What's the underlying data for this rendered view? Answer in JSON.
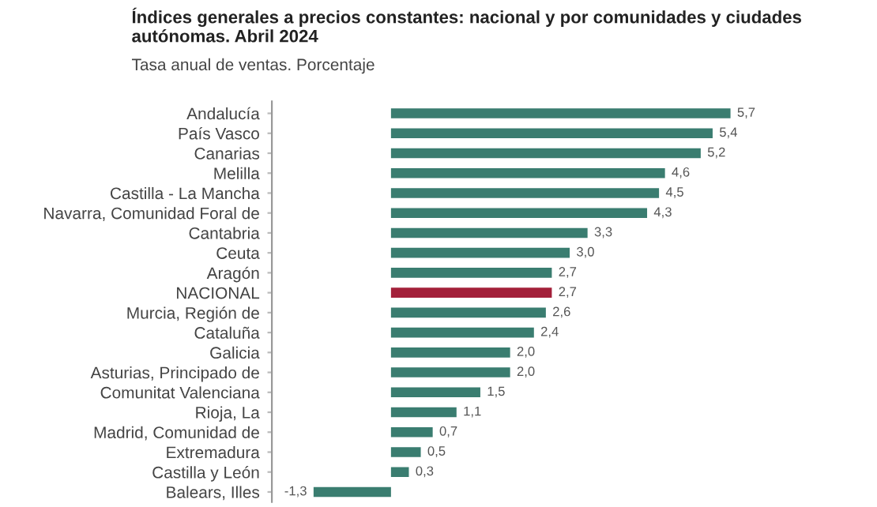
{
  "chart_data": {
    "type": "bar",
    "orientation": "horizontal",
    "title": "Índices generales a precios constantes: nacional y por comunidades y ciudades autónomas. Abril 2024",
    "subtitle": "Tasa anual de ventas. Porcentaje",
    "categories": [
      "Andalucía",
      "País Vasco",
      "Canarias",
      "Melilla",
      "Castilla - La Mancha",
      "Navarra, Comunidad Foral de",
      "Cantabria",
      "Ceuta",
      "Aragón",
      "NACIONAL",
      "Murcia, Región de",
      "Cataluña",
      "Galicia",
      "Asturias, Principado de",
      "Comunitat Valenciana",
      "Rioja, La",
      "Madrid, Comunidad de",
      "Extremadura",
      "Castilla y León",
      "Balears, Illes"
    ],
    "values": [
      5.7,
      5.4,
      5.2,
      4.6,
      4.5,
      4.3,
      3.3,
      3.0,
      2.7,
      2.7,
      2.6,
      2.4,
      2.0,
      2.0,
      1.5,
      1.1,
      0.7,
      0.5,
      0.3,
      -1.3
    ],
    "value_labels": [
      "5,7",
      "5,4",
      "5,2",
      "4,6",
      "4,5",
      "4,3",
      "3,3",
      "3,0",
      "2,7",
      "2,7",
      "2,6",
      "2,4",
      "2,0",
      "2,0",
      "1,5",
      "1,1",
      "0,7",
      "0,5",
      "0,3",
      "-1,3"
    ],
    "colors": [
      "#3a7d70",
      "#3a7d70",
      "#3a7d70",
      "#3a7d70",
      "#3a7d70",
      "#3a7d70",
      "#3a7d70",
      "#3a7d70",
      "#3a7d70",
      "#a3203a",
      "#3a7d70",
      "#3a7d70",
      "#3a7d70",
      "#3a7d70",
      "#3a7d70",
      "#3a7d70",
      "#3a7d70",
      "#3a7d70",
      "#3a7d70",
      "#3a7d70"
    ],
    "grid": false,
    "legend": false
  }
}
